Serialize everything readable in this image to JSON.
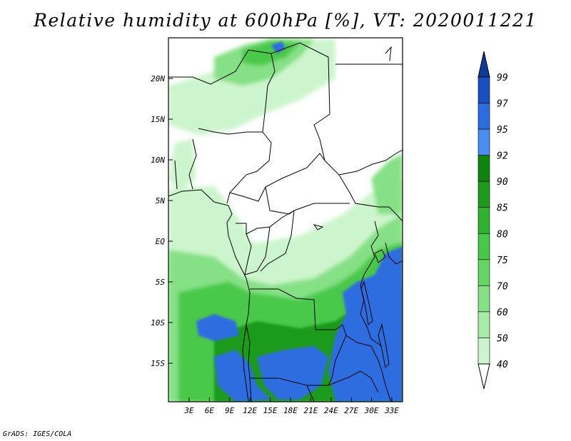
{
  "title": "Relative humidity at 600hPa [%], VT: 2020011221",
  "credit": "GrADS: IGES/COLA",
  "lat_labels": [
    "20N",
    "15N",
    "10N",
    "5N",
    "EQ",
    "5S",
    "10S",
    "15S"
  ],
  "lon_labels": [
    "3E",
    "6E",
    "9E",
    "12E",
    "15E",
    "18E",
    "21E",
    "24E",
    "27E",
    "30E",
    "33E"
  ],
  "colorbar": {
    "levels": [
      "40",
      "50",
      "60",
      "70",
      "75",
      "80",
      "85",
      "90",
      "92",
      "95",
      "97",
      "99"
    ],
    "colors": [
      "#f0fff0",
      "#cdf5cd",
      "#a6eba6",
      "#86e086",
      "#64d464",
      "#48c848",
      "#30b230",
      "#1e9a1e",
      "#0f840f",
      "#4a8cf0",
      "#2e6de0",
      "#1a4fc0",
      "#0c3a9a"
    ]
  },
  "colors": {
    "land": "#ffffff",
    "borders": "#000000",
    "light_green": "#cdf5cd",
    "mid_green": "#64d464",
    "dark_green": "#30b230",
    "blue": "#2e6de0"
  }
}
